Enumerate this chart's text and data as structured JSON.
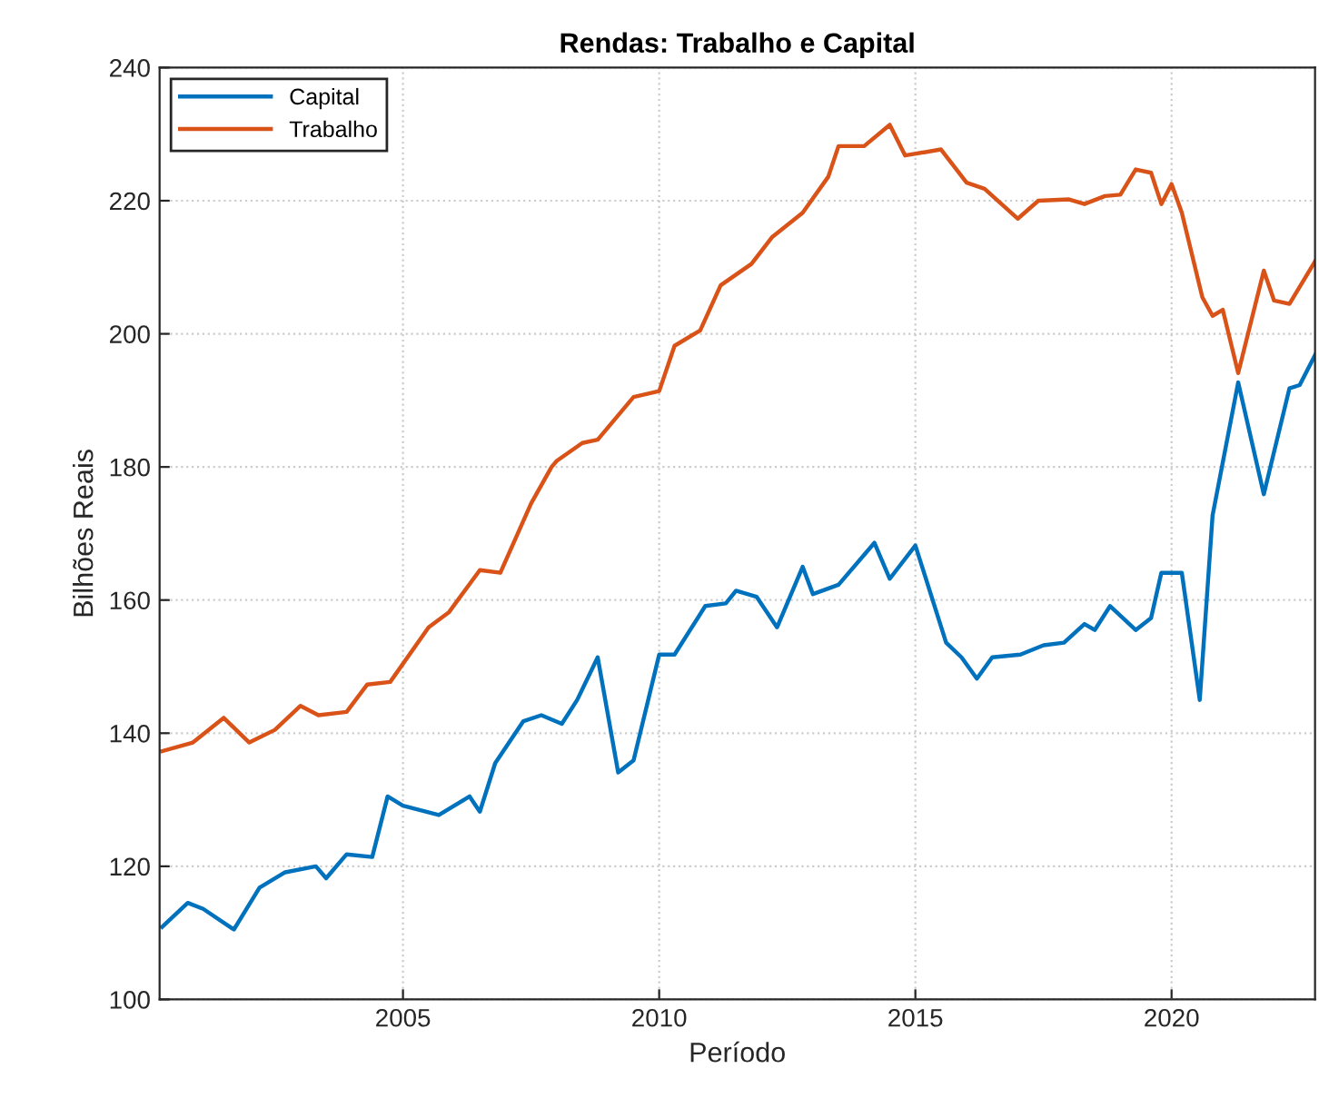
{
  "chart_data": {
    "type": "line",
    "title": "Rendas: Trabalho e Capital",
    "xlabel": "Período",
    "ylabel": "Bilhões Reais",
    "xlim": [
      2000.25,
      2022.8
    ],
    "xticks": [
      2005,
      2010,
      2015,
      2020
    ],
    "ylim": [
      100,
      240
    ],
    "yticks": [
      100,
      120,
      140,
      160,
      180,
      200,
      220,
      240
    ],
    "grid": true,
    "legend": "top left",
    "line_style": "solid",
    "marker": "none",
    "series": [
      {
        "name": "Capital",
        "color": "#0072bd",
        "x": [
          2000.3,
          2000.8,
          2001.1,
          2001.7,
          2002.2,
          2002.7,
          2003.3,
          2003.5,
          2003.9,
          2004.4,
          2004.7,
          2005.0,
          2005.7,
          2006.3,
          2006.5,
          2006.8,
          2007.35,
          2007.7,
          2008.1,
          2008.4,
          2008.8,
          2009.2,
          2009.5,
          2010.0,
          2010.3,
          2010.9,
          2011.3,
          2011.5,
          2011.9,
          2012.3,
          2012.8,
          2013.0,
          2013.5,
          2014.2,
          2014.5,
          2015.0,
          2015.6,
          2015.9,
          2016.2,
          2016.5,
          2017.05,
          2017.5,
          2017.9,
          2018.3,
          2018.5,
          2018.8,
          2019.3,
          2019.6,
          2019.8,
          2020.2,
          2020.55,
          2020.8,
          2021.3,
          2021.8,
          2022.3,
          2022.5,
          2022.8
        ],
        "values": [
          110.9,
          114.5,
          113.6,
          110.5,
          116.8,
          119.1,
          120,
          118.2,
          121.8,
          121.4,
          130.5,
          129.1,
          127.7,
          130.5,
          128.2,
          135.5,
          141.8,
          142.7,
          141.4,
          145,
          151.4,
          134.1,
          135.9,
          151.8,
          151.8,
          159.1,
          159.5,
          161.4,
          160.5,
          155.9,
          165,
          160.9,
          162.3,
          168.6,
          163.2,
          168.2,
          153.6,
          151.4,
          148.2,
          151.4,
          151.8,
          153.2,
          153.6,
          156.4,
          155.5,
          159.1,
          155.5,
          157.3,
          164.1,
          164.1,
          145,
          172.7,
          192.7,
          175.9,
          191.8,
          192.3,
          196.8
        ]
      },
      {
        "name": "Trabalho",
        "color": "#d95319",
        "x": [
          2000.3,
          2000.9,
          2001.5,
          2002.0,
          2002.5,
          2003.0,
          2003.35,
          2003.9,
          2004.3,
          2004.75,
          2005.5,
          2005.9,
          2006.5,
          2006.9,
          2007.5,
          2007.9,
          2008.0,
          2008.5,
          2008.8,
          2009.5,
          2010.0,
          2010.3,
          2010.8,
          2011.2,
          2011.8,
          2012.2,
          2012.8,
          2013.3,
          2013.5,
          2014.0,
          2014.5,
          2014.8,
          2015.5,
          2016.0,
          2016.35,
          2017.0,
          2017.4,
          2018.0,
          2018.3,
          2018.7,
          2019.0,
          2019.3,
          2019.6,
          2019.8,
          2020.0,
          2020.2,
          2020.6,
          2020.8,
          2021.0,
          2021.3,
          2021.8,
          2022.0,
          2022.3,
          2022.8
        ],
        "values": [
          137.3,
          138.6,
          142.3,
          138.6,
          140.5,
          144.1,
          142.7,
          143.2,
          147.3,
          147.7,
          155.9,
          158.2,
          164.5,
          164.1,
          174.5,
          180,
          180.9,
          183.6,
          184.1,
          190.5,
          191.4,
          198.2,
          200.5,
          207.3,
          210.5,
          214.5,
          218.2,
          223.6,
          228.2,
          228.2,
          231.4,
          226.8,
          227.7,
          222.7,
          221.8,
          217.3,
          220,
          220.2,
          219.5,
          220.7,
          220.9,
          224.7,
          224.2,
          219.5,
          222.5,
          218.2,
          205.5,
          202.7,
          203.6,
          194.1,
          209.5,
          205,
          204.5,
          210.9
        ]
      }
    ]
  }
}
